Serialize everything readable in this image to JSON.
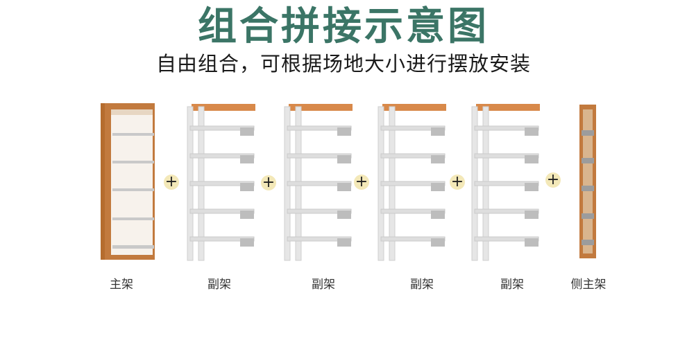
{
  "header": {
    "title": "组合拼接示意图",
    "subtitle": "自由组合，可根据场地大小进行摆放安装"
  },
  "units": [
    {
      "label": "主架"
    },
    {
      "label": "副架"
    },
    {
      "label": "副架"
    },
    {
      "label": "副架"
    },
    {
      "label": "副架"
    },
    {
      "label": "侧主架"
    }
  ],
  "connector": {
    "symbol": "+"
  },
  "colors": {
    "title": "#3b7566",
    "wood": "#c27a3e",
    "metal": "#e6e6e6",
    "plus_bg": "#f3e8b8"
  }
}
